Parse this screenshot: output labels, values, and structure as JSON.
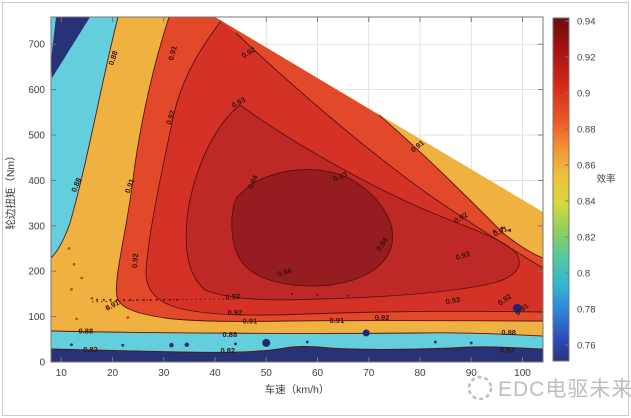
{
  "figure": {
    "watermark_text": "EDC电驱未来"
  },
  "chart_data": {
    "type": "contour",
    "title": "",
    "xlabel": "车速（km/h）",
    "ylabel": "轮边扭矩（Nm）",
    "colorbar_label": "效率",
    "x_ticks": [
      10,
      20,
      30,
      40,
      50,
      60,
      70,
      80,
      90,
      100
    ],
    "y_ticks": [
      0,
      100,
      200,
      300,
      400,
      500,
      600,
      700
    ],
    "x_range": [
      8,
      104
    ],
    "y_range": [
      0,
      760
    ],
    "grid": true,
    "colorbar_ticks": [
      "0.94",
      "0.92",
      "0.9",
      "0.88",
      "0.86",
      "0.84",
      "0.82",
      "0.8",
      "0.78",
      "0.76"
    ],
    "colorbar_range": [
      0.752,
      0.943
    ],
    "contour_levels": [
      0.82,
      0.88,
      0.91,
      0.92,
      0.93,
      0.94
    ],
    "envelope": {
      "max_torque_nm": 760,
      "corner_speed_kmh": 40,
      "torque_at_max_speed_nm": 330,
      "speed_min_kmh": 8,
      "speed_max_kmh": 104
    },
    "contour_labels": [
      {
        "t": "0.88",
        "s": 20.6,
        "q": 668,
        "a": -72
      },
      {
        "t": "0.91",
        "s": 32.2,
        "q": 679,
        "a": -75
      },
      {
        "t": "0.88",
        "s": 13.4,
        "q": 388,
        "a": -68
      },
      {
        "t": "0.91",
        "s": 23.8,
        "q": 386,
        "a": -70
      },
      {
        "t": "0.92",
        "s": 31.8,
        "q": 537,
        "a": -72
      },
      {
        "t": "0.92",
        "s": 46.8,
        "q": 677,
        "a": -32
      },
      {
        "t": "0.93",
        "s": 44.8,
        "q": 567,
        "a": -28
      },
      {
        "t": "0.92",
        "s": 24.9,
        "q": 223,
        "a": -87
      },
      {
        "t": "0.91",
        "s": 20.2,
        "q": 120,
        "a": -28
      },
      {
        "t": "0.94",
        "s": 47.8,
        "q": 394,
        "a": -65
      },
      {
        "t": "0.94",
        "s": 53.7,
        "q": 192,
        "a": -18
      },
      {
        "t": "0.93",
        "s": 64.6,
        "q": 403,
        "a": -22
      },
      {
        "t": "0.94",
        "s": 73.0,
        "q": 256,
        "a": -55
      },
      {
        "t": "0.92",
        "s": 88.2,
        "q": 313,
        "a": -30
      },
      {
        "t": "0.91",
        "s": 79.8,
        "q": 471,
        "a": -38
      },
      {
        "t": "0.91",
        "s": 95.9,
        "q": 283,
        "a": -25
      },
      {
        "t": "0.93",
        "s": 88.5,
        "q": 229,
        "a": -18
      },
      {
        "t": "0.93",
        "s": 43.5,
        "q": 138,
        "a": -4
      },
      {
        "t": "0.93",
        "s": 86.5,
        "q": 130,
        "a": -10
      },
      {
        "t": "0.92",
        "s": 43.9,
        "q": 103,
        "a": 0
      },
      {
        "t": "0.91",
        "s": 46.8,
        "q": 85,
        "a": 0
      },
      {
        "t": "0.88",
        "s": 42.9,
        "q": 55,
        "a": 0
      },
      {
        "t": "0.82",
        "s": 42.5,
        "q": 20,
        "a": 0
      },
      {
        "t": "0.88",
        "s": 14.8,
        "q": 63,
        "a": 0
      },
      {
        "t": "0.82",
        "s": 15.7,
        "q": 22,
        "a": 0
      },
      {
        "t": "0.92",
        "s": 72.6,
        "q": 92,
        "a": 0
      },
      {
        "t": "0.91",
        "s": 63.8,
        "q": 86,
        "a": 0
      },
      {
        "t": "0.92",
        "s": 96.8,
        "q": 133,
        "a": -35
      },
      {
        "t": "0.91",
        "s": 100.2,
        "q": 112,
        "a": -40
      },
      {
        "t": "0.88",
        "s": 97.3,
        "q": 59,
        "a": 0
      },
      {
        "t": "0.82",
        "s": 97.0,
        "q": 21,
        "a": 0
      }
    ],
    "dots": [
      [
        50,
        42,
        4,
        "dot_navy"
      ],
      [
        69.5,
        64,
        3.5,
        "dot_navy"
      ],
      [
        99,
        118,
        4.5,
        "dot_navy"
      ],
      [
        31.5,
        37,
        2.2,
        "dot_navy"
      ],
      [
        34.5,
        38,
        2.2,
        "dot_navy"
      ],
      [
        12,
        38,
        1.4,
        "dot_navy"
      ],
      [
        22,
        37,
        1.4,
        "dot_navy"
      ],
      [
        44,
        40,
        1.4,
        "dot_navy"
      ],
      [
        58,
        44,
        1.4,
        "dot_navy"
      ],
      [
        83,
        44,
        1.4,
        "dot_navy"
      ],
      [
        90,
        42,
        1.4,
        "dot_navy"
      ],
      [
        11.5,
        250,
        1.4,
        "dot_orange"
      ],
      [
        12.5,
        215,
        1.4,
        "dot_orange"
      ],
      [
        14,
        185,
        1.4,
        "dot_orange"
      ],
      [
        12,
        160,
        1.4,
        "dot_orange"
      ],
      [
        16,
        140,
        1.4,
        "dot_orange"
      ],
      [
        19,
        120,
        1.4,
        "dot_orange"
      ],
      [
        13,
        95,
        1.4,
        "dot_orange"
      ],
      [
        23,
        98,
        1.4,
        "dot_orange"
      ],
      [
        96,
        295,
        1.5,
        "dot_dark"
      ],
      [
        97.5,
        290,
        1.5,
        "dot_dark"
      ],
      [
        94.5,
        288,
        1.5,
        "dot_dark"
      ],
      [
        55,
        150,
        1.2,
        "dot_dark"
      ],
      [
        60,
        148,
        1.2,
        "dot_dark"
      ],
      [
        66,
        146,
        1.2,
        "dot_dark"
      ]
    ],
    "dot_row": {
      "q": 137,
      "s_from": 17,
      "s_to": 33.5,
      "step": 1.3,
      "r": 1.1,
      "color": "dot_dark"
    },
    "colorbar_gradient": [
      {
        "p": 0,
        "c": "#6e0b0f"
      },
      {
        "p": 10,
        "c": "#a81412"
      },
      {
        "p": 20,
        "c": "#d8291b"
      },
      {
        "p": 30,
        "c": "#ea5a26"
      },
      {
        "p": 38,
        "c": "#f09436"
      },
      {
        "p": 46,
        "c": "#edc23c"
      },
      {
        "p": 54,
        "c": "#d7d83e"
      },
      {
        "p": 62,
        "c": "#8fd05c"
      },
      {
        "p": 70,
        "c": "#52c8a0"
      },
      {
        "p": 78,
        "c": "#35b4d4"
      },
      {
        "p": 86,
        "c": "#2f7fd8"
      },
      {
        "p": 94,
        "c": "#2a4bb4"
      },
      {
        "p": 100,
        "c": "#27337e"
      }
    ],
    "colors": {
      "navy": "#283377",
      "cyan": "#63cfdd",
      "amber": "#efb240",
      "vermillion": "#e2492b",
      "red": "#d43127",
      "crimson": "#be2827",
      "maroon": "#951c1f",
      "contour_line": "#5a130e",
      "dot_navy": "#1f2a6e",
      "dot_orange": "#cc4a1a",
      "dot_dark": "#7c150f",
      "grid": "#dcdcdc",
      "axis": "#777777",
      "frame": "#cccccc",
      "watermark": "#bdbdbd"
    }
  }
}
